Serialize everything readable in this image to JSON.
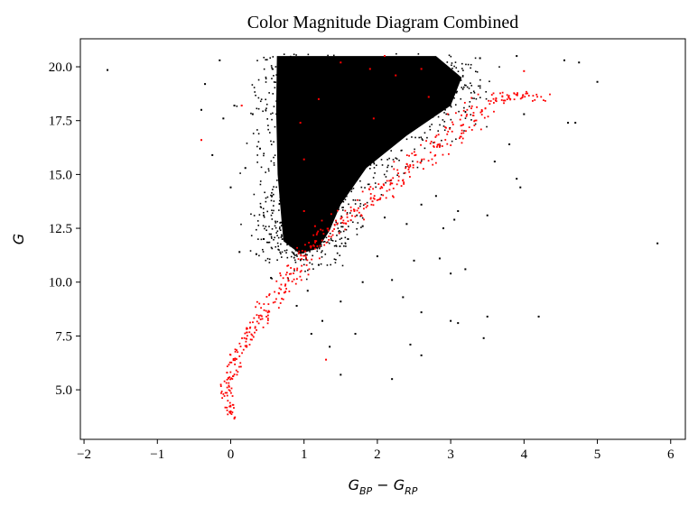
{
  "chart_data": {
    "type": "scatter",
    "title": "Color Magnitude Diagram Combined",
    "xlabel": {
      "base": "G",
      "sub1": "BP",
      "op": " − ",
      "base2": "G",
      "sub2": "RP"
    },
    "ylabel": "G",
    "xlim": [
      -2.05,
      6.2
    ],
    "ylim": [
      2.7,
      21.3
    ],
    "xticks": [
      -2,
      -1,
      0,
      1,
      2,
      3,
      4,
      5,
      6
    ],
    "xtick_labels": [
      "−2",
      "−1",
      "0",
      "1",
      "2",
      "3",
      "4",
      "5",
      "6"
    ],
    "yticks": [
      5.0,
      7.5,
      10.0,
      12.5,
      15.0,
      17.5,
      20.0
    ],
    "ytick_labels": [
      "5.0",
      "7.5",
      "10.0",
      "12.5",
      "15.0",
      "17.5",
      "20.0"
    ],
    "grid": false,
    "series": [
      {
        "color": "#000000",
        "dense_region": {
          "outline": [
            [
              0.65,
              20.5
            ],
            [
              2.8,
              20.5
            ],
            [
              3.15,
              19.5
            ],
            [
              3.0,
              18.2
            ],
            [
              2.4,
              16.8
            ],
            [
              1.85,
              15.3
            ],
            [
              1.5,
              13.6
            ],
            [
              1.35,
              12.4
            ],
            [
              1.2,
              11.6
            ],
            [
              0.95,
              11.3
            ],
            [
              0.72,
              11.9
            ],
            [
              0.7,
              12.6
            ],
            [
              0.64,
              15.0
            ],
            [
              0.62,
              18.0
            ],
            [
              0.63,
              20.5
            ]
          ]
        },
        "points": [
          [
            -1.68,
            19.85
          ],
          [
            -0.4,
            18.0
          ],
          [
            -0.35,
            19.2
          ],
          [
            -0.25,
            15.9
          ],
          [
            -0.15,
            20.3
          ],
          [
            -0.1,
            17.6
          ],
          [
            0.0,
            14.4
          ],
          [
            0.05,
            18.2
          ],
          [
            0.2,
            15.3
          ],
          [
            0.3,
            17.8
          ],
          [
            0.4,
            16.2
          ],
          [
            0.45,
            13.1
          ],
          [
            0.12,
            11.4
          ],
          [
            0.35,
            11.3
          ],
          [
            0.45,
            12.0
          ],
          [
            0.55,
            10.2
          ],
          [
            0.9,
            8.9
          ],
          [
            1.05,
            9.6
          ],
          [
            1.2,
            10.8
          ],
          [
            1.1,
            7.6
          ],
          [
            1.25,
            8.2
          ],
          [
            1.5,
            9.1
          ],
          [
            1.7,
            7.6
          ],
          [
            1.35,
            7.0
          ],
          [
            1.5,
            5.7
          ],
          [
            2.2,
            5.5
          ],
          [
            1.8,
            10.0
          ],
          [
            2.0,
            11.2
          ],
          [
            2.2,
            10.1
          ],
          [
            2.35,
            9.3
          ],
          [
            2.5,
            11.0
          ],
          [
            2.6,
            8.6
          ],
          [
            2.45,
            7.1
          ],
          [
            2.6,
            6.6
          ],
          [
            2.4,
            12.7
          ],
          [
            2.6,
            13.6
          ],
          [
            2.8,
            14.0
          ],
          [
            2.9,
            12.5
          ],
          [
            3.1,
            13.3
          ],
          [
            3.05,
            12.9
          ],
          [
            3.0,
            10.4
          ],
          [
            3.2,
            10.6
          ],
          [
            2.85,
            11.1
          ],
          [
            3.0,
            8.2
          ],
          [
            3.1,
            8.1
          ],
          [
            3.5,
            8.4
          ],
          [
            3.45,
            7.4
          ],
          [
            4.2,
            8.4
          ],
          [
            3.5,
            13.1
          ],
          [
            3.9,
            14.8
          ],
          [
            3.95,
            14.4
          ],
          [
            3.6,
            15.6
          ],
          [
            3.8,
            16.4
          ],
          [
            4.0,
            17.8
          ],
          [
            4.55,
            20.3
          ],
          [
            4.75,
            20.2
          ],
          [
            5.0,
            19.3
          ],
          [
            4.6,
            17.4
          ],
          [
            4.7,
            17.4
          ],
          [
            5.82,
            11.8
          ],
          [
            3.9,
            20.5
          ],
          [
            3.4,
            20.4
          ],
          [
            0.9,
            16.7
          ],
          [
            0.7,
            14.0
          ],
          [
            1.7,
            15.6
          ],
          [
            2.1,
            13.0
          ],
          [
            1.6,
            12.0
          ],
          [
            1.8,
            12.6
          ]
        ]
      },
      {
        "color": "#ff0000",
        "main_sequence": [
          [
            0.0,
            3.7
          ],
          [
            0.0,
            4.1
          ],
          [
            -0.05,
            5.3
          ],
          [
            0.0,
            5.6
          ],
          [
            0.05,
            6.2
          ],
          [
            0.1,
            6.7
          ],
          [
            0.15,
            7.1
          ],
          [
            0.25,
            7.6
          ],
          [
            0.4,
            8.2
          ],
          [
            0.55,
            8.8
          ],
          [
            0.65,
            9.4
          ],
          [
            0.75,
            9.9
          ],
          [
            0.85,
            10.5
          ],
          [
            0.95,
            11.0
          ],
          [
            1.05,
            11.4
          ],
          [
            1.2,
            11.9
          ],
          [
            1.4,
            12.5
          ],
          [
            1.6,
            13.0
          ],
          [
            1.8,
            13.5
          ],
          [
            2.0,
            14.0
          ],
          [
            2.2,
            14.6
          ],
          [
            2.45,
            15.3
          ],
          [
            2.7,
            16.0
          ],
          [
            2.95,
            16.7
          ],
          [
            3.15,
            17.3
          ],
          [
            3.35,
            18.0
          ],
          [
            3.55,
            18.5
          ],
          [
            3.8,
            18.7
          ],
          [
            4.2,
            18.6
          ]
        ],
        "points": [
          [
            -0.4,
            16.6
          ],
          [
            0.0,
            4.0
          ],
          [
            -0.05,
            5.8
          ],
          [
            0.15,
            18.2
          ],
          [
            1.5,
            20.2
          ],
          [
            1.9,
            19.9
          ],
          [
            2.25,
            19.6
          ],
          [
            2.6,
            19.9
          ],
          [
            1.2,
            18.5
          ],
          [
            1.95,
            17.6
          ],
          [
            0.95,
            17.4
          ],
          [
            1.0,
            15.7
          ],
          [
            1.0,
            13.3
          ],
          [
            1.3,
            6.4
          ],
          [
            2.7,
            18.6
          ],
          [
            4.0,
            19.8
          ],
          [
            1.15,
            12.6
          ],
          [
            2.1,
            20.5
          ]
        ]
      }
    ]
  }
}
